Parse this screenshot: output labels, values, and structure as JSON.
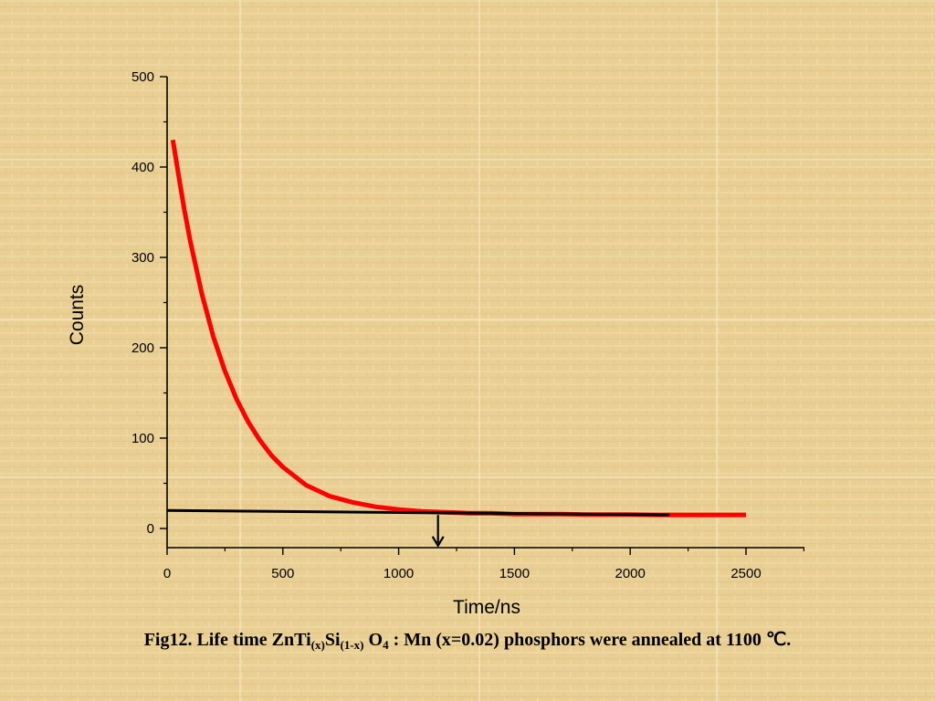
{
  "colors": {
    "background": "#e9cf93",
    "curve": "#ff0000",
    "baseline": "#000000",
    "grid_seam": "#f7ecc9"
  },
  "caption": {
    "prefix": "Fig12. Life time ZnTi",
    "sub1": "(x)",
    "mid": "Si",
    "sub2": "(1-x)",
    "mid2": " O",
    "sub3": "4",
    "suffix": " : Mn (x=0.02) phosphors were annealed at 1100 ℃."
  },
  "chart_data": {
    "type": "line",
    "title": "",
    "xlabel": "Time/ns",
    "ylabel": "Counts",
    "xlim": [
      0,
      2750
    ],
    "ylim": [
      -20,
      500
    ],
    "xticks": [
      0,
      500,
      1000,
      1500,
      2000,
      2500
    ],
    "yticks": [
      0,
      100,
      200,
      300,
      400,
      500
    ],
    "grid": false,
    "series": [
      {
        "name": "",
        "color": "#ff0000",
        "x": [
          25,
          50,
          75,
          100,
          150,
          200,
          250,
          300,
          350,
          400,
          450,
          500,
          600,
          700,
          800,
          900,
          1000,
          1100,
          1200,
          1300,
          1400,
          1500,
          1600,
          1700,
          1800,
          1900,
          2000,
          2100,
          2200,
          2300,
          2400,
          2500
        ],
        "y": [
          430,
          390,
          352,
          318,
          260,
          212,
          174,
          143,
          118,
          98,
          81,
          68,
          48,
          36,
          29,
          24,
          21,
          19,
          18,
          17,
          17,
          16,
          16,
          16,
          15.5,
          15.5,
          15.5,
          15,
          15,
          15,
          15,
          15
        ]
      },
      {
        "name": "",
        "color": "#000000",
        "x": [
          0,
          2170
        ],
        "y": [
          20,
          15
        ]
      }
    ],
    "annotations": [
      {
        "type": "arrow",
        "x": 1170,
        "y_from": 15,
        "y_to": -20
      }
    ]
  }
}
